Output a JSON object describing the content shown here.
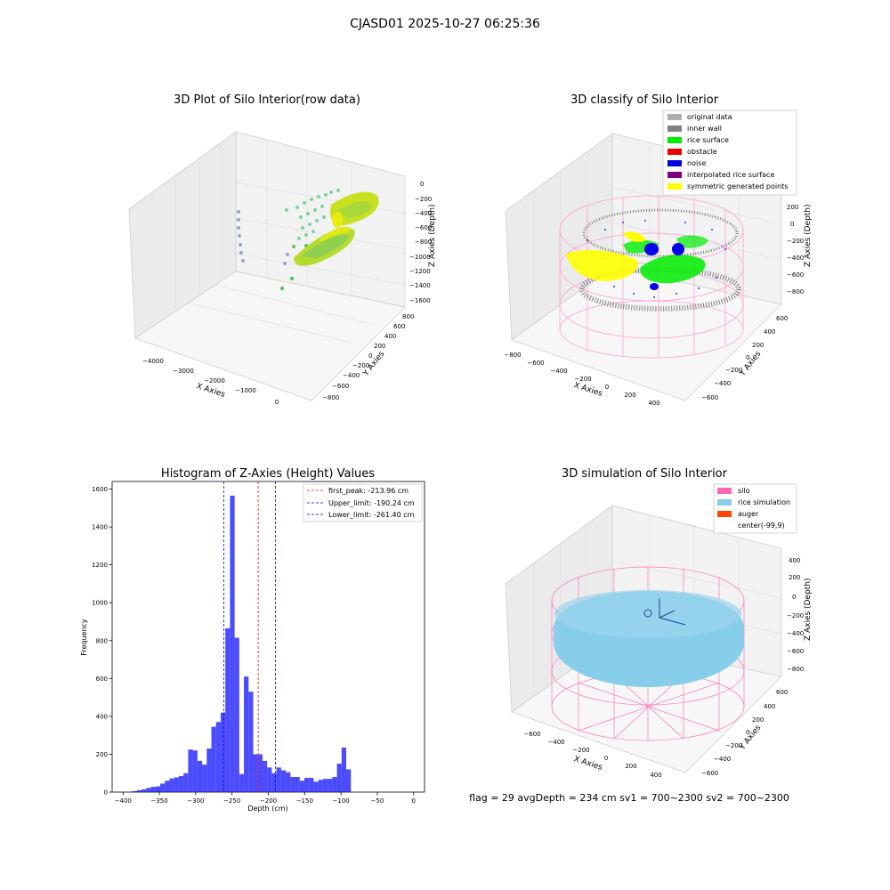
{
  "figure": {
    "suptitle": "CJASD01 2025-10-27 06:25:36",
    "footer": "flag = 29  avgDepth = 234 cm  sv1 = 700~2300  sv2 = 700~2300"
  },
  "panels": {
    "raw": {
      "title": "3D Plot of Silo Interior(row data)",
      "xlabel": "X Axies",
      "ylabel": "Y Axies",
      "zlabel": "Z Axies (Depth)",
      "xticks": [
        "−4000",
        "−3000",
        "−2000",
        "−1000",
        "0"
      ],
      "yticks": [
        "800",
        "600",
        "400",
        "200",
        "0",
        "−200",
        "−400",
        "−600",
        "−800"
      ],
      "zticks": [
        "0",
        "−200",
        "−400",
        "−600",
        "−800",
        "−1000",
        "−1200",
        "−1400",
        "−1600"
      ]
    },
    "classify": {
      "title": "3D classify of Silo Interior",
      "xlabel": "X Axies",
      "ylabel": "Y Axies",
      "zlabel": "Z Axies (Depth)",
      "xticks": [
        "−800",
        "−600",
        "−400",
        "−200",
        "0",
        "200",
        "400"
      ],
      "yticks": [
        "600",
        "400",
        "200",
        "0",
        "−200",
        "−400",
        "−600"
      ],
      "zticks": [
        "200",
        "0",
        "−200",
        "−400",
        "−600",
        "−800"
      ],
      "legend": [
        {
          "label": "original data",
          "color": "#b0b0b0"
        },
        {
          "label": "inner wall",
          "color": "#808080"
        },
        {
          "label": "rice surface",
          "color": "#00ee00"
        },
        {
          "label": "obstacle",
          "color": "#ee0000"
        },
        {
          "label": "noise",
          "color": "#0000dd"
        },
        {
          "label": "interpolated rice surface",
          "color": "#800080"
        },
        {
          "label": "symmetric generated points",
          "color": "#ffff00"
        }
      ],
      "colors": {
        "wireframe": "#ff99cc"
      }
    },
    "simulation": {
      "title": "3D simulation of Silo Interior",
      "xlabel": "X Axies",
      "ylabel": "Y Axies",
      "zlabel": "Z Axies (Depth)",
      "xticks": [
        "−600",
        "−400",
        "−200",
        "0",
        "200",
        "400"
      ],
      "yticks": [
        "600",
        "400",
        "200",
        "0",
        "−200",
        "−400",
        "−600"
      ],
      "zticks": [
        "400",
        "200",
        "0",
        "−200",
        "−400",
        "−600",
        "−800"
      ],
      "legend": [
        {
          "label": "silo",
          "color": "#ff69b4"
        },
        {
          "label": "rice simulation",
          "color": "#87ceeb"
        },
        {
          "label": "auger",
          "color": "#ff4500"
        },
        {
          "label": "center(-99,9)",
          "color": "#ffffff"
        }
      ]
    }
  },
  "chart_data": {
    "type": "bar",
    "title": "Histogram of Z-Axies (Height) Values",
    "xlabel": "Depth (cm)",
    "ylabel": "Frequency",
    "xlim": [
      -415,
      15
    ],
    "ylim": [
      0,
      1640
    ],
    "xticks": [
      -400,
      -350,
      -300,
      -250,
      -200,
      -150,
      -100,
      -50,
      0
    ],
    "yticks": [
      0,
      200,
      400,
      600,
      800,
      1000,
      1200,
      1400,
      1600
    ],
    "bar_color": "#0000ff",
    "bins": {
      "edges": [
        -393.6,
        -387.2,
        -380.8,
        -374.4,
        -368,
        -361.6,
        -355.2,
        -348.8,
        -342.4,
        -336,
        -329.6,
        -323.2,
        -316.8,
        -310.4,
        -304,
        -297.6,
        -291.2,
        -284.8,
        -278.4,
        -272,
        -265.6,
        -259.2,
        -252.8,
        -246.4,
        -240,
        -233.6,
        -227.2,
        -220.8,
        -214.4,
        -208,
        -201.6,
        -195.2,
        -188.8,
        -182.4,
        -176,
        -169.6,
        -163.2,
        -156.8,
        -150.4,
        -144,
        -137.6,
        -131.2,
        -124.8,
        -118.4,
        -112,
        -105.6,
        -99.2,
        -92.8,
        -86.4,
        -80,
        -73.6,
        -67.2,
        -60.8,
        -54.4,
        -48,
        -41.6,
        -35.2,
        -28.8,
        -22.4,
        -16,
        -9.6
      ],
      "counts": [
        2,
        5,
        10,
        15,
        22,
        28,
        30,
        45,
        60,
        72,
        78,
        85,
        100,
        225,
        220,
        165,
        145,
        230,
        345,
        370,
        420,
        865,
        1565,
        815,
        95,
        610,
        530,
        200,
        200,
        165,
        130,
        100,
        130,
        115,
        105,
        80,
        80,
        60,
        75,
        75,
        55,
        65,
        70,
        70,
        80,
        150,
        235,
        120,
        0,
        0,
        0,
        0,
        0,
        0,
        0,
        0,
        0,
        0,
        0,
        0
      ]
    },
    "vlines": [
      {
        "x": -213.96,
        "label": "first_peak: -213.96 cm",
        "color": "#ff0000"
      },
      {
        "x": -190.24,
        "label": "Upper_limit: -190.24 cm",
        "color": "#0000ff"
      },
      {
        "x": -261.4,
        "label": "Lower_limit: -261.40 cm",
        "color": "#0000ff"
      }
    ],
    "legend": "top-right"
  }
}
